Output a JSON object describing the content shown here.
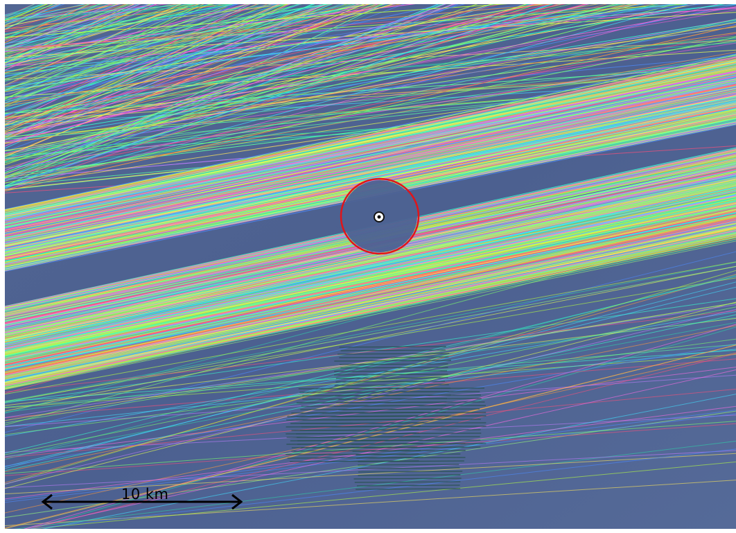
{
  "map": {
    "type": "vessel-track-density-overlay",
    "base_layer": "satellite-sea",
    "colors": {
      "sea_base": "#4a5f8f",
      "sea_light": "#5a6e9c",
      "exclusion_ring": "#e0151a",
      "survey_grid": "#24504a",
      "scale_bar": "#000000",
      "track_palette": [
        "#7dff6a",
        "#35ffd0",
        "#ff5bd8",
        "#b7ff3f",
        "#ff9a3c",
        "#3fe0ff",
        "#ff4f7a",
        "#c07dff",
        "#5cff9e",
        "#ffe75a",
        "#4d8bff",
        "#ff6be6",
        "#9bff7a",
        "#2fd1a8",
        "#e8ff50"
      ]
    },
    "marker": {
      "icon": "target-point-icon"
    },
    "exclusion_zone": {
      "icon": "circle-ring"
    },
    "scale_bar": {
      "label": "10 km"
    }
  }
}
